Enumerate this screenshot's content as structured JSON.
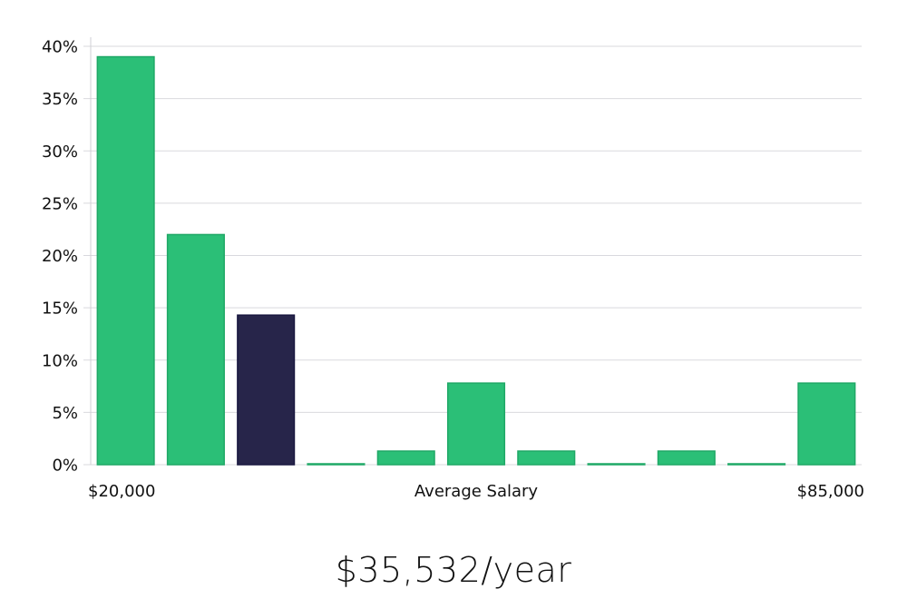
{
  "chart_data": {
    "type": "bar",
    "categories": [
      "$20,000",
      "",
      "",
      "",
      "",
      "",
      "",
      "",
      "",
      "",
      "$85,000"
    ],
    "values": [
      39,
      22,
      14.3,
      0,
      1.3,
      7.8,
      1.3,
      0,
      1.3,
      0,
      7.8
    ],
    "highlight_index": 2,
    "xlabel": "Average Salary",
    "x_start_label": "$20,000",
    "x_end_label": "$85,000",
    "ylim": [
      0,
      40
    ],
    "yticks": [
      0,
      5,
      10,
      15,
      20,
      25,
      30,
      35,
      40
    ],
    "ytick_labels": [
      "0%",
      "5%",
      "10%",
      "15%",
      "20%",
      "25%",
      "30%",
      "35%",
      "40%"
    ],
    "grid": true,
    "colors": {
      "bar": "#2bbf77",
      "bar_edge": "#1fa866",
      "highlight": "#27254a",
      "grid": "#d9d9de",
      "axis": "#cfcfd4"
    }
  },
  "summary": {
    "salary_text": "$35,532/year"
  }
}
